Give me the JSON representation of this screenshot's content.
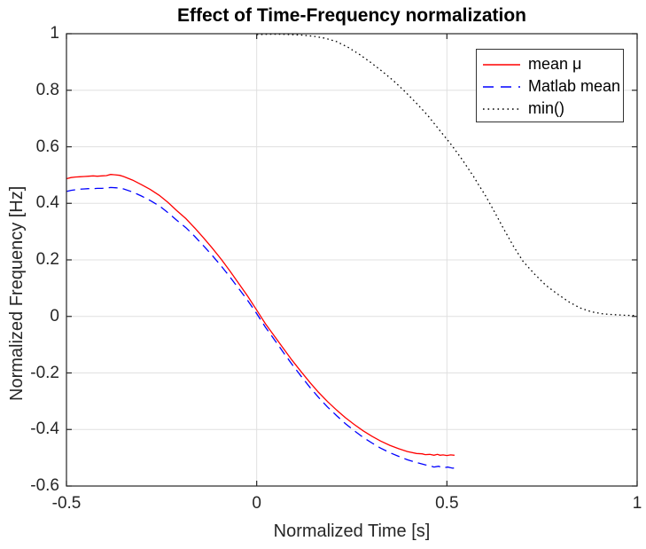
{
  "figure": {
    "background": "#ffffff"
  },
  "colors": {
    "axis": "#262626",
    "grid": "#e0e0e0",
    "title_text": "#000000",
    "label_text": "#262626",
    "legend_border": "#333333",
    "series_red": "#ff0000",
    "series_blue": "#0000ff",
    "series_black": "#000000"
  },
  "chart_data": {
    "type": "line",
    "title": "Effect of Time-Frequency normalization",
    "xlabel": "Normalized Time [s]",
    "ylabel": "Normalized Frequency [Hz]",
    "xlim": [
      -0.5,
      1
    ],
    "ylim": [
      -0.6,
      1
    ],
    "x_ticks": [
      -0.5,
      0,
      0.5,
      1
    ],
    "x_tick_labels": [
      "-0.5",
      "0",
      "0.5",
      "1"
    ],
    "y_ticks": [
      -0.6,
      -0.4,
      -0.2,
      0,
      0.2,
      0.4,
      0.6,
      0.8,
      1
    ],
    "y_tick_labels": [
      "-0.6",
      "-0.4",
      "-0.2",
      "0",
      "0.2",
      "0.4",
      "0.6",
      "0.8",
      "1"
    ],
    "grid": true,
    "legend_position": "top-right",
    "series": [
      {
        "name": "mean μ",
        "color": "#ff0000",
        "style": "solid",
        "points": [
          [
            -0.5,
            0.487
          ],
          [
            -0.488,
            0.491
          ],
          [
            -0.477,
            0.493
          ],
          [
            -0.465,
            0.494
          ],
          [
            -0.453,
            0.495
          ],
          [
            -0.442,
            0.496
          ],
          [
            -0.43,
            0.497
          ],
          [
            -0.419,
            0.496
          ],
          [
            -0.407,
            0.497
          ],
          [
            -0.395,
            0.498
          ],
          [
            -0.384,
            0.502
          ],
          [
            -0.372,
            0.501
          ],
          [
            -0.36,
            0.499
          ],
          [
            -0.35,
            0.495
          ],
          [
            -0.326,
            0.482
          ],
          [
            -0.303,
            0.466
          ],
          [
            -0.28,
            0.449
          ],
          [
            -0.256,
            0.428
          ],
          [
            -0.233,
            0.403
          ],
          [
            -0.21,
            0.374
          ],
          [
            -0.186,
            0.346
          ],
          [
            -0.163,
            0.313
          ],
          [
            -0.14,
            0.278
          ],
          [
            -0.117,
            0.242
          ],
          [
            -0.093,
            0.202
          ],
          [
            -0.07,
            0.16
          ],
          [
            -0.047,
            0.116
          ],
          [
            -0.023,
            0.07
          ],
          [
            0.0,
            0.022
          ],
          [
            0.023,
            -0.026
          ],
          [
            0.047,
            -0.07
          ],
          [
            0.07,
            -0.113
          ],
          [
            0.093,
            -0.155
          ],
          [
            0.117,
            -0.196
          ],
          [
            0.14,
            -0.234
          ],
          [
            0.163,
            -0.269
          ],
          [
            0.186,
            -0.301
          ],
          [
            0.21,
            -0.331
          ],
          [
            0.233,
            -0.358
          ],
          [
            0.256,
            -0.382
          ],
          [
            0.28,
            -0.405
          ],
          [
            0.303,
            -0.424
          ],
          [
            0.326,
            -0.441
          ],
          [
            0.35,
            -0.456
          ],
          [
            0.373,
            -0.468
          ],
          [
            0.396,
            -0.478
          ],
          [
            0.42,
            -0.485
          ],
          [
            0.435,
            -0.486
          ],
          [
            0.443,
            -0.489
          ],
          [
            0.455,
            -0.488
          ],
          [
            0.466,
            -0.491
          ],
          [
            0.475,
            -0.488
          ],
          [
            0.482,
            -0.491
          ],
          [
            0.49,
            -0.49
          ],
          [
            0.5,
            -0.492
          ],
          [
            0.51,
            -0.49
          ],
          [
            0.52,
            -0.491
          ]
        ]
      },
      {
        "name": "Matlab mean",
        "color": "#0000ff",
        "style": "dashed",
        "points": [
          [
            -0.5,
            0.442
          ],
          [
            -0.488,
            0.446
          ],
          [
            -0.477,
            0.448
          ],
          [
            -0.465,
            0.45
          ],
          [
            -0.453,
            0.451
          ],
          [
            -0.442,
            0.452
          ],
          [
            -0.43,
            0.452
          ],
          [
            -0.419,
            0.453
          ],
          [
            -0.407,
            0.453
          ],
          [
            -0.395,
            0.454
          ],
          [
            -0.384,
            0.456
          ],
          [
            -0.372,
            0.455
          ],
          [
            -0.36,
            0.454
          ],
          [
            -0.35,
            0.451
          ],
          [
            -0.326,
            0.44
          ],
          [
            -0.303,
            0.426
          ],
          [
            -0.28,
            0.41
          ],
          [
            -0.256,
            0.391
          ],
          [
            -0.233,
            0.367
          ],
          [
            -0.21,
            0.34
          ],
          [
            -0.186,
            0.314
          ],
          [
            -0.163,
            0.283
          ],
          [
            -0.14,
            0.25
          ],
          [
            -0.117,
            0.216
          ],
          [
            -0.093,
            0.178
          ],
          [
            -0.07,
            0.139
          ],
          [
            -0.047,
            0.098
          ],
          [
            -0.023,
            0.055
          ],
          [
            0.0,
            0.01
          ],
          [
            0.023,
            -0.038
          ],
          [
            0.047,
            -0.083
          ],
          [
            0.07,
            -0.127
          ],
          [
            0.093,
            -0.17
          ],
          [
            0.117,
            -0.212
          ],
          [
            0.14,
            -0.251
          ],
          [
            0.163,
            -0.287
          ],
          [
            0.186,
            -0.32
          ],
          [
            0.21,
            -0.351
          ],
          [
            0.233,
            -0.379
          ],
          [
            0.256,
            -0.404
          ],
          [
            0.28,
            -0.428
          ],
          [
            0.303,
            -0.448
          ],
          [
            0.326,
            -0.466
          ],
          [
            0.35,
            -0.482
          ],
          [
            0.373,
            -0.495
          ],
          [
            0.396,
            -0.507
          ],
          [
            0.42,
            -0.517
          ],
          [
            0.443,
            -0.525
          ],
          [
            0.455,
            -0.528
          ],
          [
            0.466,
            -0.533
          ],
          [
            0.478,
            -0.53
          ],
          [
            0.49,
            -0.536
          ],
          [
            0.502,
            -0.533
          ],
          [
            0.515,
            -0.537
          ],
          [
            0.525,
            -0.535
          ]
        ]
      },
      {
        "name": "min()",
        "color": "#000000",
        "style": "dotted",
        "points": [
          [
            0.0,
            0.997
          ],
          [
            0.03,
            0.998
          ],
          [
            0.06,
            0.998
          ],
          [
            0.09,
            0.997
          ],
          [
            0.12,
            0.995
          ],
          [
            0.15,
            0.991
          ],
          [
            0.18,
            0.984
          ],
          [
            0.21,
            0.972
          ],
          [
            0.24,
            0.952
          ],
          [
            0.27,
            0.927
          ],
          [
            0.3,
            0.898
          ],
          [
            0.33,
            0.867
          ],
          [
            0.36,
            0.833
          ],
          [
            0.39,
            0.795
          ],
          [
            0.42,
            0.754
          ],
          [
            0.45,
            0.71
          ],
          [
            0.48,
            0.66
          ],
          [
            0.51,
            0.61
          ],
          [
            0.54,
            0.555
          ],
          [
            0.555,
            0.525
          ],
          [
            0.57,
            0.495
          ],
          [
            0.585,
            0.462
          ],
          [
            0.6,
            0.43
          ],
          [
            0.625,
            0.37
          ],
          [
            0.65,
            0.308
          ],
          [
            0.675,
            0.248
          ],
          [
            0.7,
            0.195
          ],
          [
            0.73,
            0.15
          ],
          [
            0.76,
            0.11
          ],
          [
            0.79,
            0.08
          ],
          [
            0.82,
            0.052
          ],
          [
            0.85,
            0.03
          ],
          [
            0.88,
            0.016
          ],
          [
            0.91,
            0.009
          ],
          [
            0.94,
            0.006
          ],
          [
            0.97,
            0.004
          ],
          [
            1.0,
            0.003
          ]
        ]
      }
    ]
  }
}
